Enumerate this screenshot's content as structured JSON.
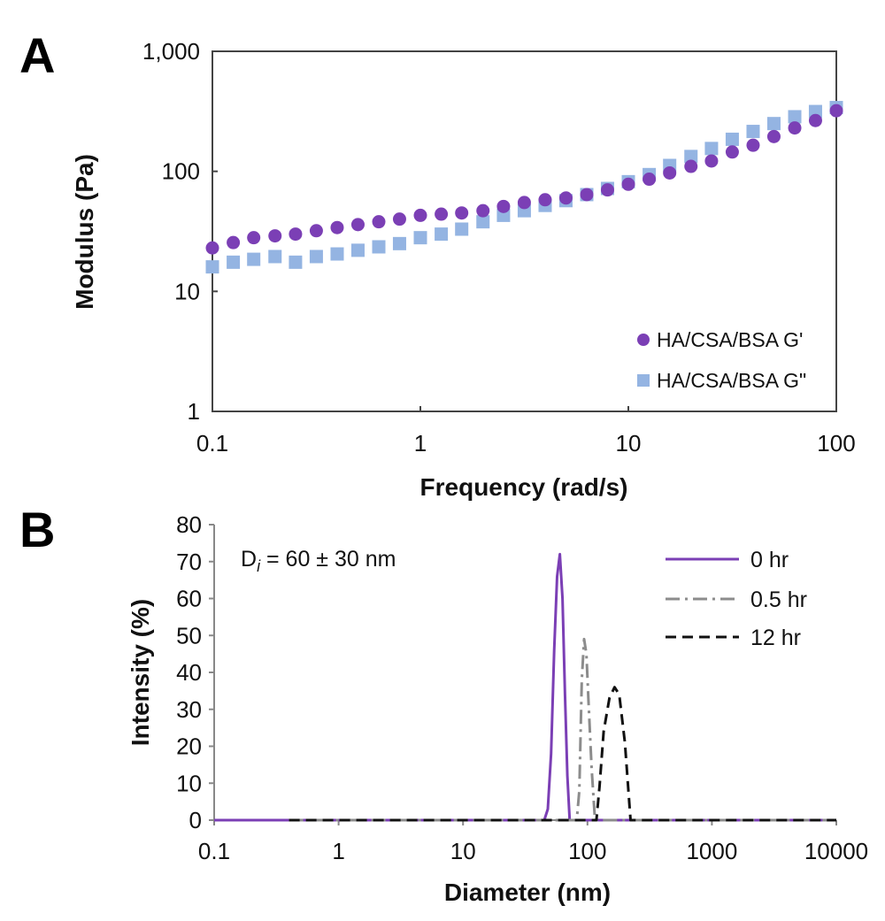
{
  "panels": {
    "a": {
      "letter": "A"
    },
    "b": {
      "letter": "B"
    }
  },
  "chart_data": [
    {
      "type": "scatter",
      "title": "",
      "xlabel": "Frequency (rad/s)",
      "ylabel": "Modulus (Pa)",
      "xscale": "log",
      "yscale": "log",
      "xlim": [
        0.1,
        100
      ],
      "ylim": [
        1,
        1000
      ],
      "xticks": [
        "0.1",
        "1",
        "10",
        "100"
      ],
      "yticks": [
        "1",
        "10",
        "100",
        "1,000"
      ],
      "grid": false,
      "legend_position": "bottom-right",
      "series": [
        {
          "name": "HA/CSA/BSA G'",
          "marker": "circle",
          "color": "#7b3fb5",
          "x": [
            0.1,
            0.126,
            0.158,
            0.2,
            0.251,
            0.316,
            0.398,
            0.501,
            0.631,
            0.794,
            1.0,
            1.26,
            1.58,
            2.0,
            2.51,
            3.16,
            3.98,
            5.01,
            6.31,
            7.94,
            10.0,
            12.6,
            15.8,
            20.0,
            25.1,
            31.6,
            39.8,
            50.1,
            63.1,
            79.4,
            100
          ],
          "y": [
            23,
            25.5,
            28,
            29,
            30,
            32,
            34,
            36,
            38,
            40,
            43,
            44,
            45,
            47,
            51,
            55,
            58,
            60,
            64,
            70,
            78,
            86,
            97,
            110,
            122,
            145,
            165,
            195,
            230,
            265,
            320
          ]
        },
        {
          "name": "HA/CSA/BSA G\"",
          "marker": "square",
          "color": "#94b4e2",
          "x": [
            0.1,
            0.126,
            0.158,
            0.2,
            0.251,
            0.316,
            0.398,
            0.501,
            0.631,
            0.794,
            1.0,
            1.26,
            1.58,
            2.0,
            2.51,
            3.16,
            3.98,
            5.01,
            6.31,
            7.94,
            10.0,
            12.6,
            15.8,
            20.0,
            25.1,
            31.6,
            39.8,
            50.1,
            63.1,
            79.4,
            100
          ],
          "y": [
            16,
            17.5,
            18.5,
            19.5,
            17.5,
            19.5,
            20.5,
            22,
            23.5,
            25,
            28,
            30,
            33,
            38,
            43,
            47,
            52,
            57,
            64,
            72,
            82,
            94,
            112,
            133,
            155,
            185,
            215,
            250,
            285,
            315,
            340
          ]
        }
      ]
    },
    {
      "type": "line",
      "title": "",
      "xlabel": "Diameter (nm)",
      "ylabel": "Intensity (%)",
      "xscale": "log",
      "xlim": [
        0.1,
        10000
      ],
      "ylim": [
        0,
        80
      ],
      "xticks": [
        "0.1",
        "1",
        "10",
        "100",
        "1000",
        "10000"
      ],
      "yticks": [
        "0",
        "10",
        "20",
        "30",
        "40",
        "50",
        "60",
        "70",
        "80"
      ],
      "grid": false,
      "legend_position": "top-right",
      "annotation": {
        "prefix": "D",
        "subscript": "i",
        "suffix": " = 60 ± 30 nm"
      },
      "series": [
        {
          "name": "0 hr",
          "color": "#7b3fb5",
          "style": "solid",
          "x": [
            0.1,
            45,
            48,
            51,
            54,
            57,
            60,
            63,
            66,
            69,
            72,
            10000
          ],
          "y": [
            0,
            0,
            3,
            18,
            46,
            66,
            72,
            60,
            34,
            12,
            0,
            0
          ]
        },
        {
          "name": "0.5 hr",
          "color": "#8c8c8c",
          "style": "dash-dot",
          "x": [
            0.4,
            82,
            86,
            90,
            94,
            98,
            102,
            108,
            115,
            10000
          ],
          "y": [
            0,
            0,
            8,
            38,
            49,
            45,
            32,
            14,
            0,
            0
          ]
        },
        {
          "name": "12 hr",
          "color": "#111111",
          "style": "dashed",
          "x": [
            0.4,
            118,
            125,
            135,
            150,
            165,
            180,
            200,
            222,
            10000
          ],
          "y": [
            0,
            0,
            9,
            24,
            33,
            36,
            34,
            21,
            0,
            0
          ]
        }
      ]
    }
  ]
}
